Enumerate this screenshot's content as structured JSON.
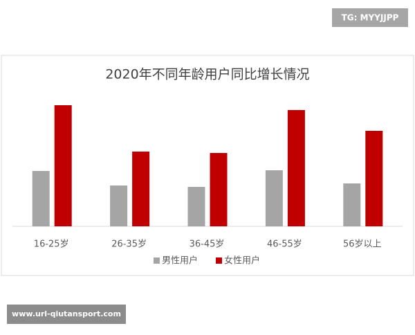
{
  "chart_data": {
    "type": "bar",
    "title": "2020年不同年龄用户同比增长情况",
    "categories": [
      "16-25岁",
      "26-35岁",
      "36-45岁",
      "46-55岁",
      "56岁以上"
    ],
    "series": [
      {
        "name": "男性用户",
        "color": "#a5a5a5",
        "values": [
          80,
          59,
          57,
          81,
          62
        ]
      },
      {
        "name": "女性用户",
        "color": "#c00000",
        "values": [
          175,
          108,
          106,
          168,
          138
        ]
      }
    ],
    "ylim": [
      0,
      180
    ],
    "legend": "bottom"
  },
  "watermarks": {
    "top": "TG: MYYJJPP",
    "bottom": "www.url-qiutansport.com"
  }
}
